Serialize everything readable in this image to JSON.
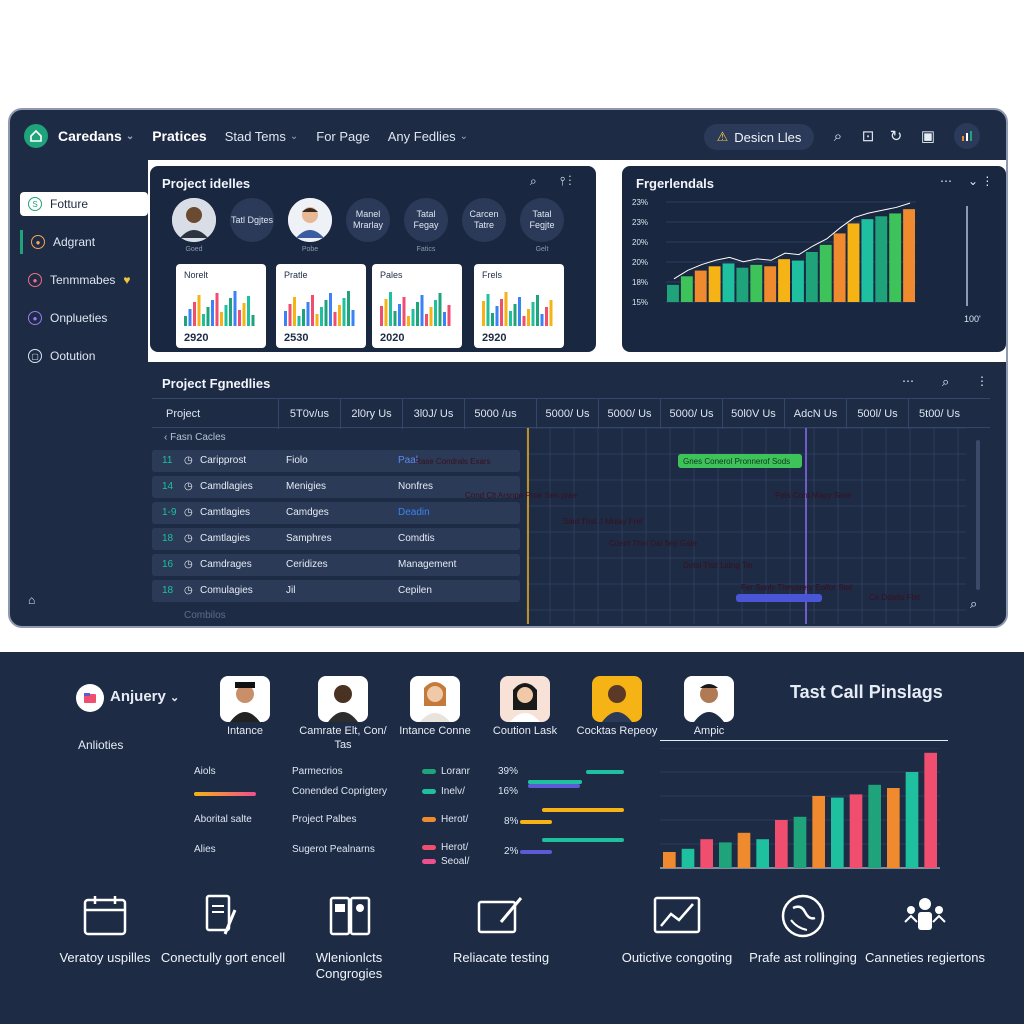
{
  "app": {
    "brand": "Caredans",
    "nav": [
      "Pratices",
      "Stad Tems",
      "For Page",
      "Any Fedlies"
    ],
    "design_files_button": "Desicn Lles",
    "accent": "#1fa37a"
  },
  "sidebar": {
    "items": [
      "Fotture",
      "Adgrant",
      "Tenmmabes",
      "Onplueties",
      "Ootution"
    ]
  },
  "project_details": {
    "title": "Project idelles",
    "members": [
      {
        "label": "",
        "caption": "Goed",
        "photo": true
      },
      {
        "label": "Tatl Dgjtes",
        "caption": "",
        "photo": false
      },
      {
        "label": "",
        "caption": "Pobe",
        "photo": true
      },
      {
        "label": "Manel Mrarlay",
        "caption": "",
        "photo": false
      },
      {
        "label": "Tatal Fegay",
        "caption": "Fatics",
        "photo": false
      },
      {
        "label": "Carcen Tatre",
        "caption": "",
        "photo": false
      },
      {
        "label": "Tatal Fegjte",
        "caption": "Gelt",
        "photo": false
      }
    ],
    "cards": [
      {
        "title": "Norelt",
        "year": "2920"
      },
      {
        "title": "Pratle",
        "year": "2530"
      },
      {
        "title": "Pales",
        "year": "2020"
      },
      {
        "title": "Frels",
        "year": "2920"
      }
    ]
  },
  "progress_panel": {
    "title": "Frgerlendals",
    "y_ticks": [
      "23%",
      "23%",
      "20%",
      "20%",
      "18%",
      "15%"
    ],
    "right_label": "100'"
  },
  "chart_data": {
    "type": "bar",
    "title": "Frgerlendals",
    "values": [
      12,
      18,
      22,
      25,
      27,
      24,
      26,
      25,
      30,
      29,
      35,
      40,
      48,
      55,
      58,
      60,
      62,
      65
    ]
  },
  "schedule": {
    "title": "Project Fgnedlies",
    "columns": [
      "Project",
      "5T0v/us",
      "2l0ry Us",
      "3l0J/ Us",
      "5000 /us",
      "5000/ Us",
      "5000/ Us",
      "5000/ Us",
      "50l0V Us",
      "AdcN Us",
      "500l/ Us",
      "5t00/ Us"
    ],
    "group_label": "Fasn Cacles",
    "rows": [
      {
        "id": "11",
        "name": "Caripprost",
        "type": "Fiolo",
        "status": "Paal"
      },
      {
        "id": "14",
        "name": "Camdlagies",
        "type": "Menigies",
        "status": "Nonfres"
      },
      {
        "id": "1-9",
        "name": "Camtlagies",
        "type": "Camdges",
        "status": "Deadin"
      },
      {
        "id": "18",
        "name": "Camtlagies",
        "type": "Samphres",
        "status": "Comdtis"
      },
      {
        "id": "16",
        "name": "Camdrages",
        "type": "Ceridizes",
        "status": "Management"
      },
      {
        "id": "18",
        "name": "Comulagies",
        "type": "Jil",
        "status": "Cepilen"
      }
    ],
    "last_row_faded": "Combilos",
    "bars": [
      {
        "label": "Rase Condrals Exars",
        "color": "#f26d85"
      },
      {
        "label": "Gnes Conerol Pronnerof Sods",
        "color": "#3ec25a"
      },
      {
        "label": "Cond Clt Arsnpe Proe Sen prae",
        "color": "#f26d85"
      },
      {
        "label": "Pels Cont Mapy Siale",
        "color": "#f26d85"
      },
      {
        "label": "Said Thst J Mnlay Frel",
        "color": "#f26d85"
      },
      {
        "label": "Coent Thel Dat fiep Gale",
        "color": "#f26d85"
      },
      {
        "label": "Detsl Tlsit Lidng Ter",
        "color": "#f26d85"
      },
      {
        "label": "Fer Sanly Theyarety Eolfor Stal",
        "color": "#f26d85"
      },
      {
        "label": "Ce Ddatio Flet",
        "color": "#f26d85"
      },
      {
        "label": "",
        "color": "#4a56d6"
      }
    ]
  },
  "bottom": {
    "workspace": "Anjuery",
    "activities_label": "Anlioties",
    "people": [
      {
        "label": "Intance"
      },
      {
        "label": "Camrate Elt, Con/ Tas"
      },
      {
        "label": "Intance Conne"
      },
      {
        "label": "Coution Lask"
      },
      {
        "label": "Cocktas Repeoy"
      },
      {
        "label": "Ampic"
      }
    ],
    "col1": [
      "Aiols",
      "Aborital salte",
      "Alies"
    ],
    "col2": [
      "Parmecrios",
      "Conended Coprigtery",
      "Project Palbes",
      "Sugerot Pealnarns"
    ],
    "legend": [
      {
        "label": "Loranr",
        "color": "#1fa37a"
      },
      {
        "label": "Inelv/",
        "color": "#1fc0a0"
      },
      {
        "label": "Herot/",
        "color": "#f08a2e"
      },
      {
        "label": "Herot/",
        "color": "#f04e6e"
      },
      {
        "label": "Seoal/",
        "color": "#f04e8e"
      }
    ],
    "percents": [
      "39%",
      "16%",
      "8%",
      "2%"
    ],
    "chart_title": "Tast Call Pinslags",
    "chart_values": [
      10,
      12,
      18,
      16,
      22,
      18,
      30,
      32,
      45,
      44,
      46,
      52,
      50,
      60,
      72
    ]
  },
  "features": [
    {
      "label": "Veratoy uspilles",
      "icon": "calendar-icon"
    },
    {
      "label": "Conectully gort encell",
      "icon": "document-pen-icon"
    },
    {
      "label": "Wlenionlcts Congrogies",
      "icon": "files-icon"
    },
    {
      "label": "Reliacate testing",
      "icon": "edit-frame-icon"
    },
    {
      "label": "Outictive congoting",
      "icon": "trend-chart-icon"
    },
    {
      "label": "Prafe ast rollinging",
      "icon": "globe-icon"
    },
    {
      "label": "Canneties regiertons",
      "icon": "people-icon"
    }
  ]
}
